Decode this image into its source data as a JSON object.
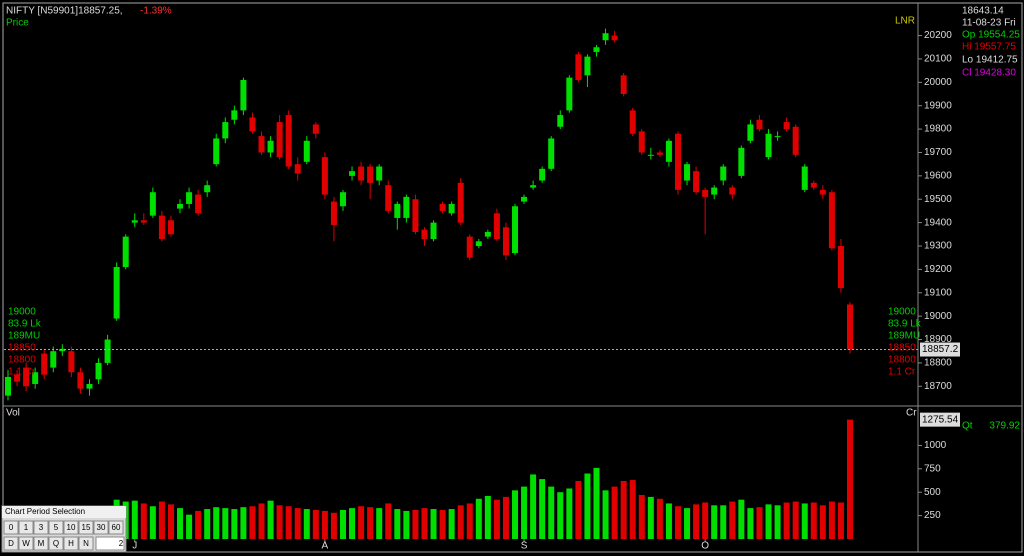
{
  "chart_data": {
    "type": "candlestick",
    "title": "NIFTY [N59901]18857.25,",
    "change": "-1.39%",
    "price_label": "Price",
    "scale_label": "LNR",
    "info": {
      "value": "18643.14",
      "date": "11-08-23 Fri",
      "open": "Op 19554.25",
      "high": "Hi 19557.75",
      "low": "Lo 19412.75",
      "close": "Cl 19428.30"
    },
    "side_labels": [
      {
        "text": "19000",
        "color": "#00d000"
      },
      {
        "text": "83.9 Lk",
        "color": "#00d000"
      },
      {
        "text": "189MU",
        "color": "#00d000"
      },
      {
        "text": "18850",
        "color": "#e00000"
      },
      {
        "text": "18800",
        "color": "#e00000"
      },
      {
        "text": "1.1 Cr",
        "color": "#e00000"
      }
    ],
    "last_price": 18857.25,
    "last_price_label": "18857.2",
    "up_color": "#00e000",
    "down_color": "#e00000",
    "ylim": [
      18620,
      20335
    ],
    "yticks": [
      18700,
      18800,
      18900,
      19000,
      19100,
      19200,
      19300,
      19400,
      19500,
      19600,
      19700,
      19800,
      19900,
      20000,
      20100,
      20200
    ],
    "xticks": [
      {
        "value": 14,
        "label": "J"
      },
      {
        "value": 35,
        "label": "A"
      },
      {
        "value": 57,
        "label": "S"
      },
      {
        "value": 77,
        "label": "O"
      }
    ],
    "ohlc": [
      [
        18660,
        18770,
        18640,
        18740
      ],
      [
        18750,
        18770,
        18700,
        18720
      ],
      [
        18780,
        18800,
        18680,
        18700
      ],
      [
        18710,
        18780,
        18690,
        18760
      ],
      [
        18840,
        18860,
        18730,
        18750
      ],
      [
        18780,
        18870,
        18760,
        18850
      ],
      [
        18850,
        18880,
        18830,
        18860
      ],
      [
        18850,
        18870,
        18740,
        18760
      ],
      [
        18760,
        18780,
        18670,
        18690
      ],
      [
        18690,
        18730,
        18660,
        18710
      ],
      [
        18730,
        18820,
        18710,
        18800
      ],
      [
        18800,
        18920,
        18790,
        18900
      ],
      [
        18990,
        19230,
        18980,
        19210
      ],
      [
        19210,
        19350,
        19200,
        19340
      ],
      [
        19400,
        19440,
        19380,
        19410
      ],
      [
        19410,
        19440,
        19390,
        19400
      ],
      [
        19430,
        19550,
        19420,
        19530
      ],
      [
        19430,
        19450,
        19320,
        19330
      ],
      [
        19410,
        19430,
        19340,
        19350
      ],
      [
        19460,
        19500,
        19440,
        19480
      ],
      [
        19480,
        19550,
        19460,
        19530
      ],
      [
        19520,
        19540,
        19430,
        19440
      ],
      [
        19530,
        19580,
        19510,
        19560
      ],
      [
        19650,
        19780,
        19640,
        19760
      ],
      [
        19760,
        19850,
        19740,
        19830
      ],
      [
        19840,
        19900,
        19820,
        19880
      ],
      [
        19880,
        20020,
        19860,
        20010
      ],
      [
        19850,
        19870,
        19780,
        19790
      ],
      [
        19770,
        19790,
        19690,
        19700
      ],
      [
        19700,
        19770,
        19680,
        19750
      ],
      [
        19830,
        19860,
        19670,
        19680
      ],
      [
        19860,
        19880,
        19630,
        19640
      ],
      [
        19650,
        19680,
        19580,
        19610
      ],
      [
        19660,
        19770,
        19650,
        19750
      ],
      [
        19820,
        19830,
        19760,
        19780
      ],
      [
        19680,
        19700,
        19500,
        19520
      ],
      [
        19490,
        19510,
        19320,
        19390
      ],
      [
        19470,
        19540,
        19450,
        19530
      ],
      [
        19600,
        19640,
        19580,
        19620
      ],
      [
        19640,
        19660,
        19560,
        19580
      ],
      [
        19640,
        19650,
        19500,
        19570
      ],
      [
        19580,
        19650,
        19560,
        19640
      ],
      [
        19560,
        19580,
        19440,
        19450
      ],
      [
        19420,
        19490,
        19370,
        19480
      ],
      [
        19420,
        19520,
        19400,
        19510
      ],
      [
        19500,
        19520,
        19350,
        19360
      ],
      [
        19370,
        19380,
        19300,
        19330
      ],
      [
        19330,
        19410,
        19320,
        19400
      ],
      [
        19480,
        19490,
        19440,
        19450
      ],
      [
        19440,
        19490,
        19430,
        19480
      ],
      [
        19570,
        19590,
        19390,
        19400
      ],
      [
        19340,
        19350,
        19240,
        19250
      ],
      [
        19300,
        19330,
        19290,
        19320
      ],
      [
        19340,
        19370,
        19330,
        19360
      ],
      [
        19440,
        19460,
        19320,
        19330
      ],
      [
        19380,
        19400,
        19240,
        19260
      ],
      [
        19270,
        19480,
        19260,
        19470
      ],
      [
        19490,
        19520,
        19480,
        19510
      ],
      [
        19550,
        19580,
        19540,
        19560
      ],
      [
        19580,
        19640,
        19570,
        19630
      ],
      [
        19630,
        19770,
        19620,
        19760
      ],
      [
        19810,
        19880,
        19800,
        19860
      ],
      [
        19880,
        20030,
        19870,
        20020
      ],
      [
        20120,
        20130,
        20000,
        20010
      ],
      [
        20030,
        20120,
        19980,
        20110
      ],
      [
        20130,
        20160,
        20110,
        20150
      ],
      [
        20180,
        20230,
        20160,
        20210
      ],
      [
        20200,
        20220,
        20170,
        20180
      ],
      [
        20030,
        20040,
        19940,
        19950
      ],
      [
        19880,
        19890,
        19770,
        19780
      ],
      [
        19790,
        19800,
        19690,
        19700
      ],
      [
        19690,
        19720,
        19670,
        19690
      ],
      [
        19700,
        19710,
        19680,
        19690
      ],
      [
        19660,
        19760,
        19640,
        19750
      ],
      [
        19780,
        19790,
        19520,
        19540
      ],
      [
        19580,
        19660,
        19560,
        19650
      ],
      [
        19620,
        19640,
        19520,
        19530
      ],
      [
        19540,
        19550,
        19350,
        19510
      ],
      [
        19520,
        19560,
        19500,
        19550
      ],
      [
        19580,
        19650,
        19560,
        19640
      ],
      [
        19550,
        19560,
        19500,
        19520
      ],
      [
        19600,
        19730,
        19590,
        19720
      ],
      [
        19750,
        19840,
        19740,
        19820
      ],
      [
        19840,
        19860,
        19790,
        19800
      ],
      [
        19680,
        19800,
        19670,
        19780
      ],
      [
        19770,
        19790,
        19750,
        19770
      ],
      [
        19830,
        19850,
        19790,
        19800
      ],
      [
        19810,
        19820,
        19680,
        19690
      ],
      [
        19540,
        19650,
        19530,
        19640
      ],
      [
        19570,
        19580,
        19540,
        19550
      ],
      [
        19540,
        19560,
        19500,
        19520
      ],
      [
        19530,
        19540,
        19280,
        19290
      ],
      [
        19300,
        19330,
        19100,
        19120
      ],
      [
        19050,
        19060,
        18840,
        18857.25
      ]
    ],
    "volume_label": "Vol",
    "volume_unit": "Cr",
    "last_volume_label": "1275.54",
    "qty_label": "Qt",
    "qty": "379.92",
    "volume": [
      300,
      310,
      290,
      320,
      300,
      330,
      310,
      300,
      320,
      310,
      330,
      350,
      420,
      400,
      410,
      380,
      350,
      400,
      370,
      330,
      260,
      300,
      320,
      340,
      330,
      320,
      340,
      350,
      380,
      410,
      360,
      350,
      330,
      320,
      310,
      300,
      280,
      310,
      330,
      350,
      340,
      330,
      380,
      320,
      300,
      310,
      330,
      320,
      310,
      320,
      360,
      380,
      430,
      460,
      420,
      450,
      520,
      560,
      690,
      640,
      560,
      500,
      540,
      620,
      700,
      760,
      520,
      560,
      620,
      630,
      470,
      450,
      430,
      380,
      350,
      330,
      370,
      390,
      360,
      360,
      400,
      420,
      330,
      340,
      370,
      360,
      390,
      400,
      380,
      390,
      360,
      400,
      390,
      1275.54
    ],
    "ylim2": [
      0,
      1400
    ],
    "y2ticks": [
      250,
      500,
      750,
      1000
    ],
    "period_panel": {
      "title": "Chart Period Selection",
      "row1": [
        "0",
        "1",
        "3",
        "5",
        "10",
        "15",
        "30",
        "60"
      ],
      "row2": [
        "D",
        "W",
        "M",
        "Q",
        "H",
        "N"
      ],
      "input": "2"
    }
  }
}
